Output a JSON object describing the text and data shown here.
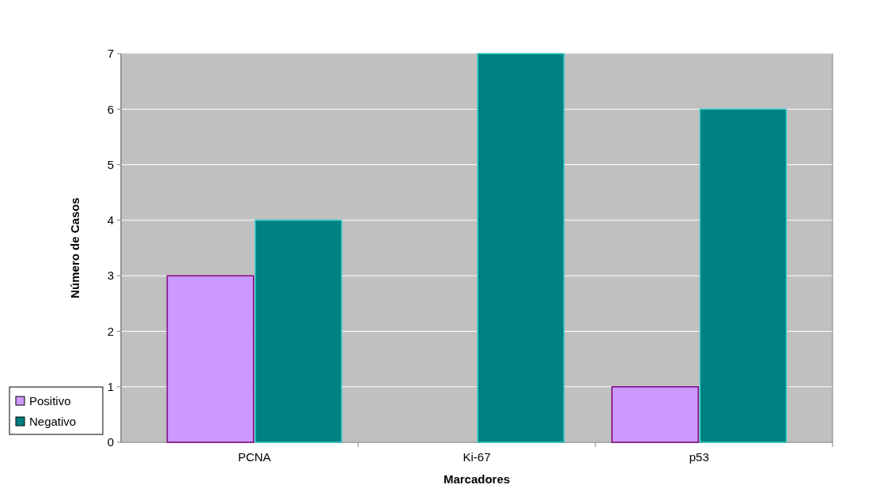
{
  "chart_data": {
    "type": "bar",
    "xlabel": "Marcadores",
    "ylabel": "Número de Casos",
    "categories": [
      "PCNA",
      "Ki-67",
      "p53"
    ],
    "series": [
      {
        "name": "Positivo",
        "color": "#cc99ff",
        "values": [
          3,
          0,
          1
        ]
      },
      {
        "name": "Negativo",
        "color": "#008080",
        "values": [
          4,
          7,
          6
        ]
      }
    ],
    "ylim": [
      0,
      7
    ],
    "yticks": [
      0,
      1,
      2,
      3,
      4,
      5,
      6,
      7
    ],
    "grid": "y",
    "legend": "bottom left"
  }
}
